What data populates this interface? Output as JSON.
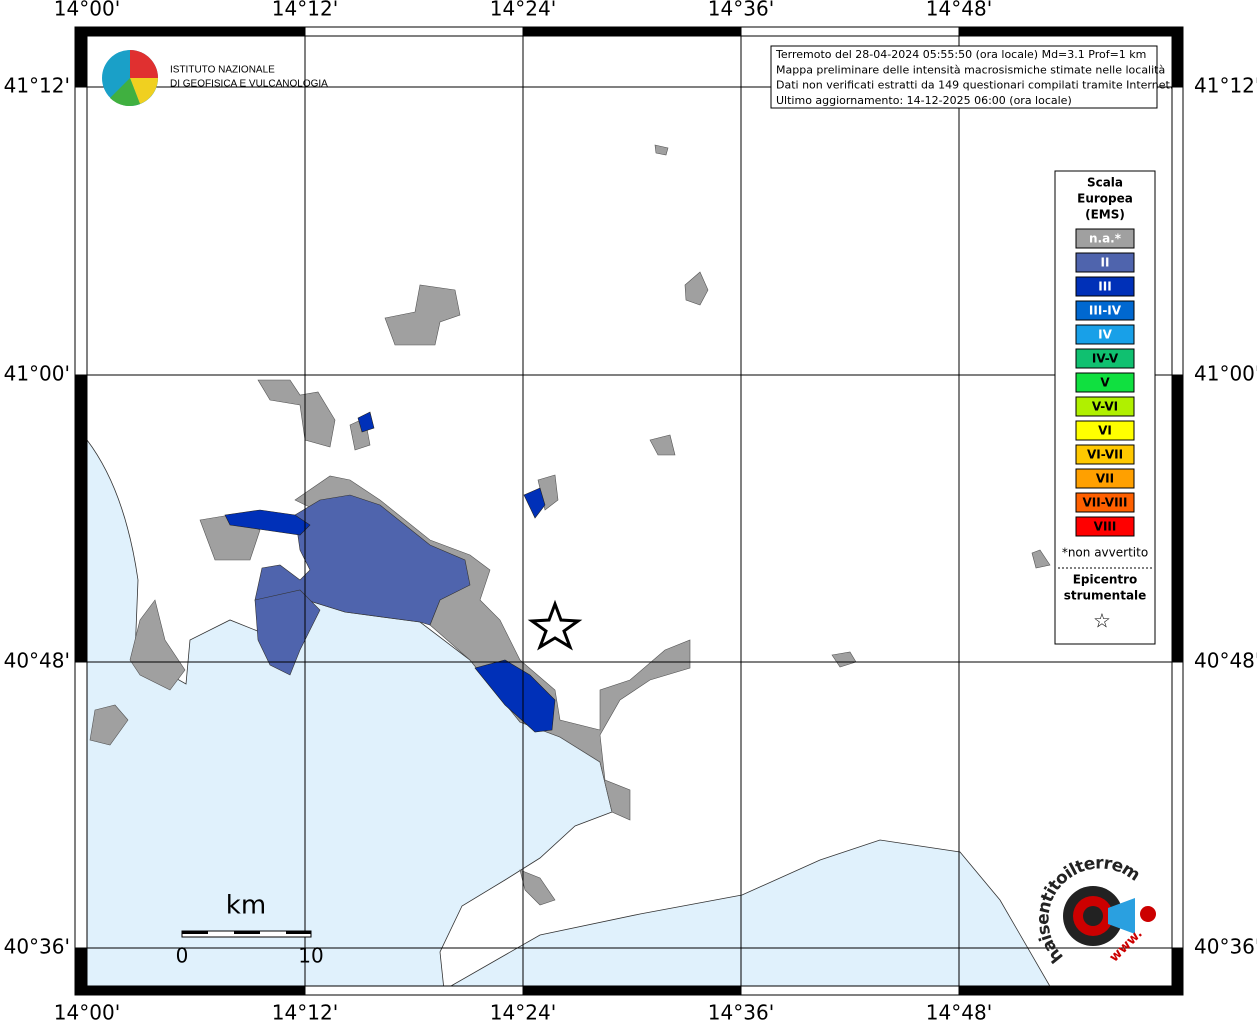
{
  "map": {
    "lon_labels": [
      "14°00'",
      "14°12'",
      "14°24'",
      "14°36'",
      "14°48'"
    ],
    "lat_labels": [
      "41°12'",
      "41°00'",
      "40°48'",
      "40°36'"
    ],
    "institute": [
      "ISTITUTO NAZIONALE",
      "DI GEOFISICA E VULCANOLOGIA"
    ],
    "info": [
      "Terremoto del 28-04-2024 05:55:50 (ora locale) Md=3.1 Prof=1 km",
      "Mappa preliminare delle intensità macrosismiche stimate nelle località",
      "Dati non verificati estratti da 149 questionari compilati tramite Internet.",
      "Ultimo aggiornamento: 14-12-2025 06:00 (ora locale)"
    ],
    "legend": {
      "title": [
        "Scala",
        "Europea",
        "(EMS)"
      ],
      "items": [
        {
          "label": "n.a.*",
          "color": "#a0a0a0"
        },
        {
          "label": "II",
          "color": "#4f64ad"
        },
        {
          "label": "III",
          "color": "#0030b8"
        },
        {
          "label": "III-IV",
          "color": "#0068d0"
        },
        {
          "label": "IV",
          "color": "#18a0e8"
        },
        {
          "label": "IV-V",
          "color": "#10c070"
        },
        {
          "label": "V",
          "color": "#10e040"
        },
        {
          "label": "V-VI",
          "color": "#b0f000"
        },
        {
          "label": "VI",
          "color": "#ffff00"
        },
        {
          "label": "VI-VII",
          "color": "#ffc800"
        },
        {
          "label": "VII",
          "color": "#ffa000"
        },
        {
          "label": "VII-VIII",
          "color": "#ff6000"
        },
        {
          "label": "VIII",
          "color": "#ff0000"
        }
      ],
      "note": "*non avvertito",
      "epicenter": [
        "Epicentro",
        "strumentale"
      ],
      "star": "☆"
    },
    "scale_bar": {
      "unit": "km",
      "start": "0",
      "end": "10"
    },
    "site_logo": {
      "text": "haisentitoilterremoto.it",
      "prefix": "www."
    }
  }
}
